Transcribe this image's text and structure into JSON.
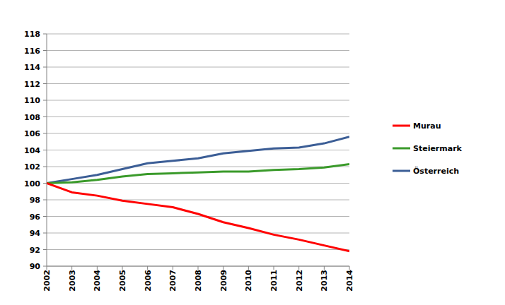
{
  "chart_data": {
    "type": "line",
    "x": [
      2002,
      2003,
      2004,
      2005,
      2006,
      2007,
      2008,
      2009,
      2010,
      2011,
      2012,
      2013,
      2014
    ],
    "xlim": [
      2002,
      2014
    ],
    "xticks": [
      2002,
      2003,
      2004,
      2005,
      2006,
      2007,
      2008,
      2009,
      2010,
      2011,
      2012,
      2013,
      2014
    ],
    "ylim": [
      90,
      118
    ],
    "yticks": [
      90,
      92,
      94,
      96,
      98,
      100,
      102,
      104,
      106,
      108,
      110,
      112,
      114,
      116,
      118
    ],
    "grid": true,
    "legend": "right",
    "series": [
      {
        "name": "Murau",
        "color": "#ff0000",
        "values": [
          100,
          98.9,
          98.5,
          97.9,
          97.5,
          97.1,
          96.3,
          95.3,
          94.6,
          93.8,
          93.2,
          92.5,
          91.8
        ]
      },
      {
        "name": "Steiermark",
        "color": "#3a9a2a",
        "values": [
          100,
          100.1,
          100.4,
          100.8,
          101.1,
          101.2,
          101.3,
          101.4,
          101.4,
          101.6,
          101.7,
          101.9,
          102.3
        ]
      },
      {
        "name": "Österreich",
        "color": "#3c5e96",
        "values": [
          100,
          100.5,
          101.0,
          101.7,
          102.4,
          102.7,
          103.0,
          103.6,
          103.9,
          104.2,
          104.3,
          104.8,
          105.6
        ]
      }
    ]
  }
}
